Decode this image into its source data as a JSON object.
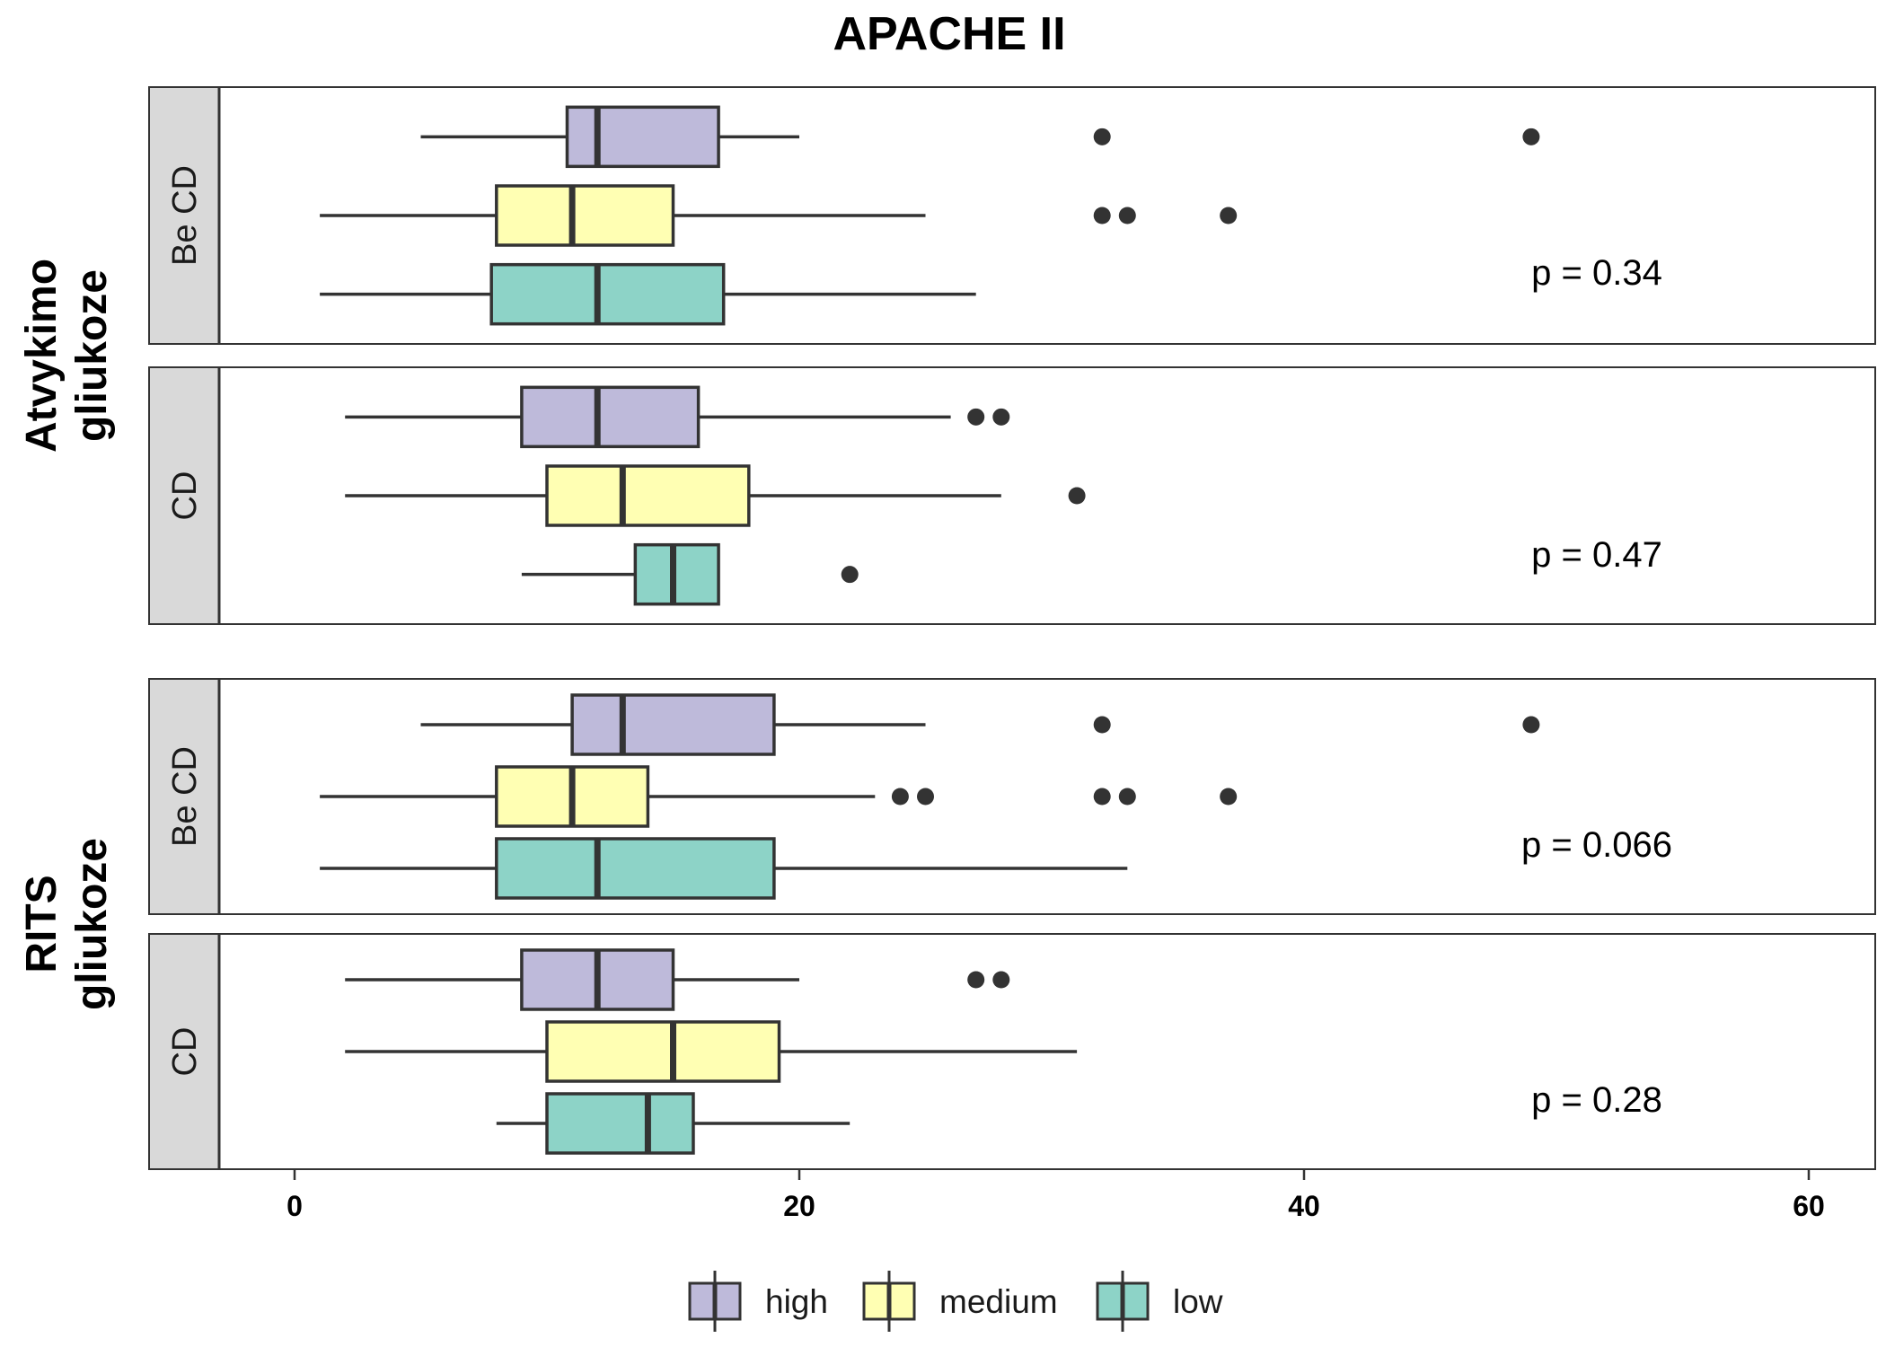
{
  "chart_data": {
    "type": "boxplot",
    "title": "APACHE II",
    "orientation": "horizontal",
    "xlim": [
      -6,
      63
    ],
    "x_ticks": [
      0,
      20,
      40,
      60
    ],
    "grid": false,
    "legend_position": "bottom",
    "legend": [
      {
        "label": "high",
        "color": "#BEBADA"
      },
      {
        "label": "medium",
        "color": "#FFFFB3"
      },
      {
        "label": "low",
        "color": "#8DD3C7"
      }
    ],
    "groups": [
      {
        "label_lines": [
          "Atvykimo",
          "gliukoze"
        ],
        "panels": [
          {
            "strip": "Be CD",
            "p_label": "p = 0.34",
            "boxes": [
              {
                "level": "high",
                "min": 5,
                "q1": 10.8,
                "median": 12,
                "q3": 16.8,
                "max": 20,
                "outliers": [
                  32,
                  49
                ]
              },
              {
                "level": "medium",
                "min": 1,
                "q1": 8,
                "median": 11,
                "q3": 15,
                "max": 25,
                "outliers": [
                  32,
                  33,
                  37
                ]
              },
              {
                "level": "low",
                "min": 1,
                "q1": 7.8,
                "median": 12,
                "q3": 17,
                "max": 27,
                "outliers": []
              }
            ]
          },
          {
            "strip": "CD",
            "p_label": "p = 0.47",
            "boxes": [
              {
                "level": "high",
                "min": 2,
                "q1": 9,
                "median": 12,
                "q3": 16,
                "max": 26,
                "outliers": [
                  27,
                  28
                ]
              },
              {
                "level": "medium",
                "min": 2,
                "q1": 10,
                "median": 13,
                "q3": 18,
                "max": 28,
                "outliers": [
                  31
                ]
              },
              {
                "level": "low",
                "min": 9,
                "q1": 13.5,
                "median": 15,
                "q3": 16.8,
                "max": 16.8,
                "outliers": [
                  22
                ]
              }
            ]
          }
        ]
      },
      {
        "label_lines": [
          "RITS",
          "gliukoze"
        ],
        "panels": [
          {
            "strip": "Be CD",
            "p_label": "p = 0.066",
            "boxes": [
              {
                "level": "high",
                "min": 5,
                "q1": 11,
                "median": 13,
                "q3": 19,
                "max": 25,
                "outliers": [
                  32,
                  49
                ]
              },
              {
                "level": "medium",
                "min": 1,
                "q1": 8,
                "median": 11,
                "q3": 14,
                "max": 23,
                "outliers": [
                  24,
                  25,
                  32,
                  33,
                  37
                ]
              },
              {
                "level": "low",
                "min": 1,
                "q1": 8,
                "median": 12,
                "q3": 19,
                "max": 33,
                "outliers": []
              }
            ]
          },
          {
            "strip": "CD",
            "p_label": "p = 0.28",
            "boxes": [
              {
                "level": "high",
                "min": 2,
                "q1": 9,
                "median": 12,
                "q3": 15,
                "max": 20,
                "outliers": [
                  27,
                  28
                ]
              },
              {
                "level": "medium",
                "min": 2,
                "q1": 10,
                "median": 15,
                "q3": 19.2,
                "max": 31,
                "outliers": []
              },
              {
                "level": "low",
                "min": 8,
                "q1": 10,
                "median": 14,
                "q3": 15.8,
                "max": 22,
                "outliers": []
              }
            ]
          }
        ]
      }
    ]
  }
}
